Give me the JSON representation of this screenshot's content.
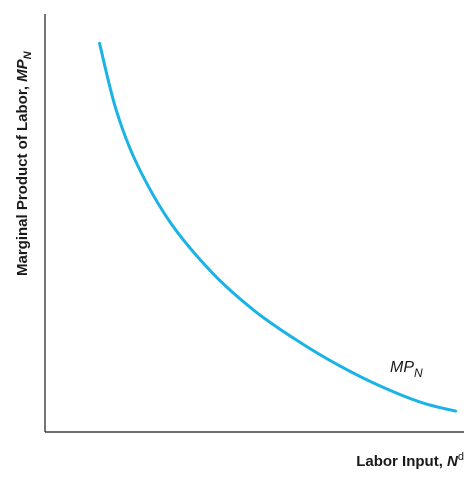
{
  "chart_data": {
    "type": "line",
    "xlabel": {
      "text": "Labor Input, ",
      "var": "N",
      "sup": "d"
    },
    "ylabel": {
      "text": "Marginal Product of Labor, ",
      "var": "MP",
      "sub": "N"
    },
    "series": [
      {
        "name": "MP",
        "name_sub": "N",
        "color": "#1ab3e6",
        "x": [
          0.13,
          0.17,
          0.22,
          0.3,
          0.4,
          0.5,
          0.6,
          0.7,
          0.8,
          0.9,
          0.98
        ],
        "y": [
          0.93,
          0.77,
          0.64,
          0.5,
          0.38,
          0.29,
          0.22,
          0.16,
          0.11,
          0.07,
          0.05
        ]
      }
    ],
    "xlim": [
      0,
      1
    ],
    "ylim": [
      0,
      1
    ],
    "ticks": "none",
    "grid": false,
    "legend": "label at end of curve"
  }
}
